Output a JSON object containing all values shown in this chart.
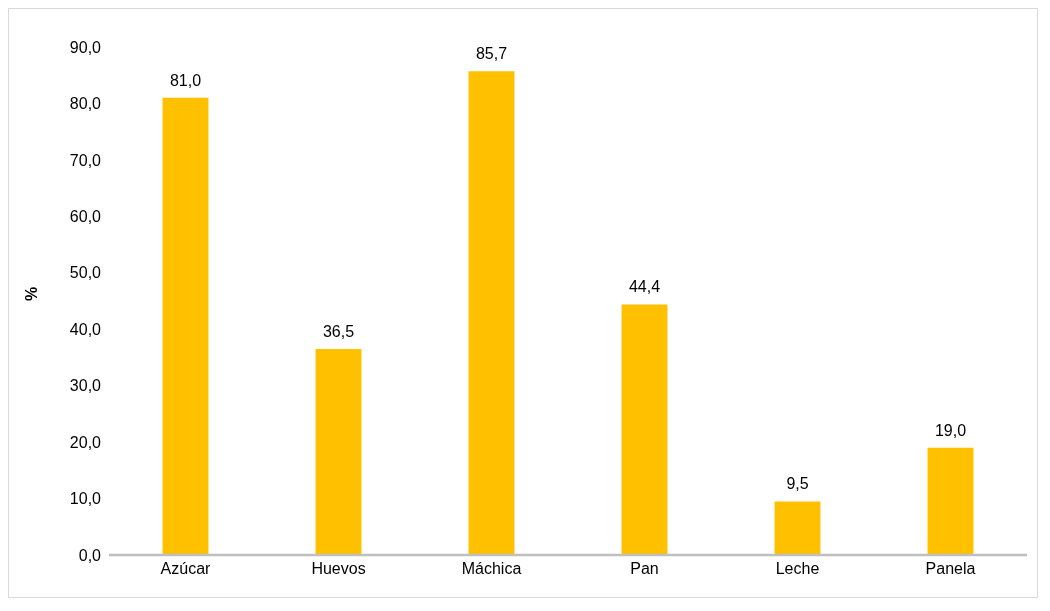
{
  "chart_data": {
    "type": "bar",
    "ylabel": "%",
    "categories": [
      "Azúcar",
      "Huevos",
      "Máchica",
      "Pan",
      "Leche",
      "Panela"
    ],
    "values": [
      81.0,
      36.5,
      85.7,
      44.4,
      9.5,
      19.0
    ],
    "value_labels": [
      "81,0",
      "36,5",
      "85,7",
      "44,4",
      "9,5",
      "19,0"
    ],
    "color": "#ffc000",
    "ylim": [
      0,
      90
    ],
    "yticks": [
      {
        "value": 0,
        "label": "0,0"
      },
      {
        "value": 10,
        "label": "10,0"
      },
      {
        "value": 20,
        "label": "20,0"
      },
      {
        "value": 30,
        "label": "30,0"
      },
      {
        "value": 40,
        "label": "40,0"
      },
      {
        "value": 50,
        "label": "50,0"
      },
      {
        "value": 60,
        "label": "60,0"
      },
      {
        "value": 70,
        "label": "70,0"
      },
      {
        "value": 80,
        "label": "80,0"
      },
      {
        "value": 90,
        "label": "90,0"
      }
    ],
    "grid": false,
    "legend": false
  }
}
